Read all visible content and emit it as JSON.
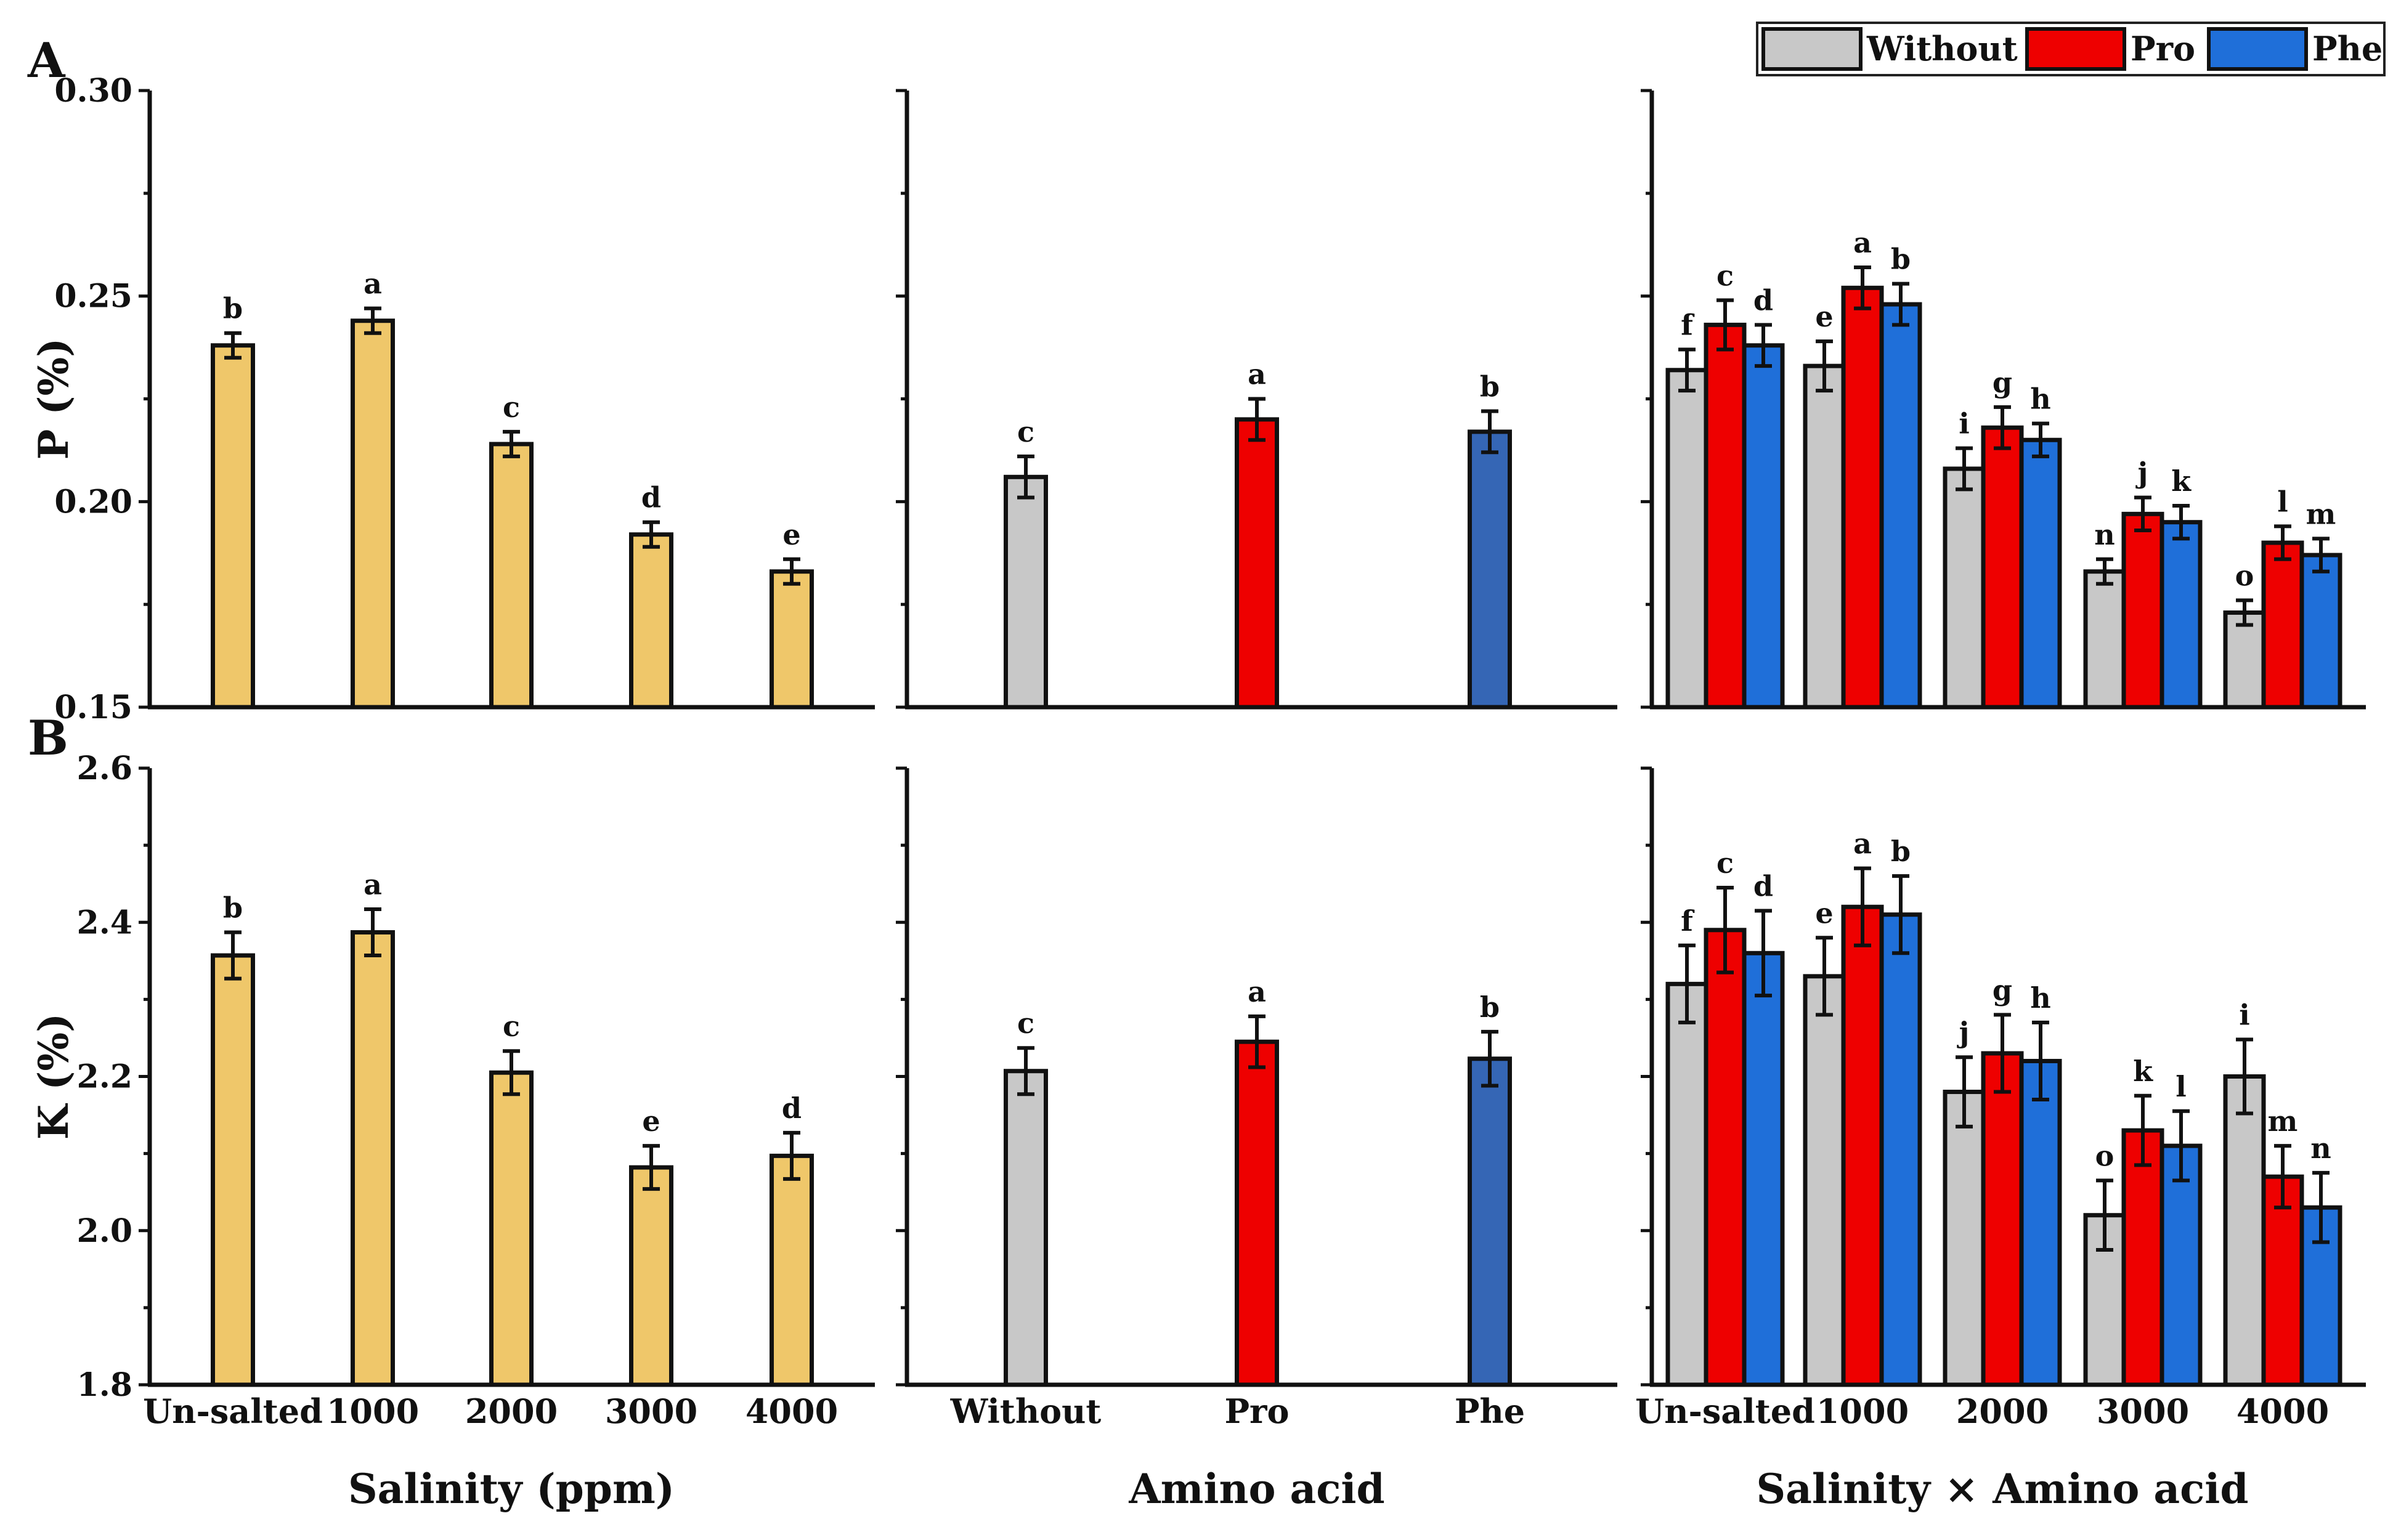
{
  "panel_letters": {
    "top": "A",
    "bottom": "B"
  },
  "legend": {
    "items": [
      {
        "label": "Without",
        "color": "#c8c8c8"
      },
      {
        "label": "Pro",
        "color": "#ee0000"
      },
      {
        "label": "Phe",
        "color": "#1f6fd9"
      }
    ]
  },
  "x_titles": [
    "Salinity (ppm)",
    "Amino acid",
    "Salinity × Amino acid"
  ],
  "colors": {
    "salinity": "#efc76a",
    "without": "#c8c8c8",
    "pro": "#ee0000",
    "phe": "#1f6fd9",
    "phe_main": "#3566b5"
  },
  "chart_data": [
    {
      "type": "bar",
      "id": "A1",
      "ylabel": "P (%)",
      "ylim": [
        0.15,
        0.3
      ],
      "yticks": [
        "0.15",
        "0.20",
        "0.25",
        "0.30"
      ],
      "categories": [
        "Un-salted",
        "1000",
        "2000",
        "3000",
        "4000"
      ],
      "series": [
        {
          "values": [
            0.238,
            0.244,
            0.214,
            0.192,
            0.183
          ],
          "errors": [
            0.003,
            0.003,
            0.003,
            0.003,
            0.003
          ],
          "letters": [
            "b",
            "a",
            "c",
            "d",
            "e"
          ]
        }
      ]
    },
    {
      "type": "bar",
      "id": "A2",
      "ylim": [
        0.15,
        0.3
      ],
      "categories": [
        "Without",
        "Pro",
        "Phe"
      ],
      "series": [
        {
          "values": [
            0.206,
            0.22,
            0.217
          ],
          "errors": [
            0.005,
            0.005,
            0.005
          ],
          "letters": [
            "c",
            "a",
            "b"
          ]
        }
      ]
    },
    {
      "type": "bar",
      "id": "A3",
      "ylim": [
        0.15,
        0.3
      ],
      "categories": [
        "Un-salted",
        "1000",
        "2000",
        "3000",
        "4000"
      ],
      "series": [
        {
          "name": "Without",
          "values": [
            0.232,
            0.233,
            0.208,
            0.183,
            0.173
          ],
          "errors": [
            0.005,
            0.006,
            0.005,
            0.003,
            0.003
          ],
          "letters": [
            "f",
            "e",
            "i",
            "n",
            "o"
          ]
        },
        {
          "name": "Pro",
          "values": [
            0.243,
            0.252,
            0.218,
            0.197,
            0.19
          ],
          "errors": [
            0.006,
            0.005,
            0.005,
            0.004,
            0.004
          ],
          "letters": [
            "c",
            "a",
            "g",
            "j",
            "l"
          ]
        },
        {
          "name": "Phe",
          "values": [
            0.238,
            0.248,
            0.215,
            0.195,
            0.187
          ],
          "errors": [
            0.005,
            0.005,
            0.004,
            0.004,
            0.004
          ],
          "letters": [
            "d",
            "b",
            "h",
            "k",
            "m"
          ]
        }
      ]
    },
    {
      "type": "bar",
      "id": "B1",
      "ylabel": "K (%)",
      "ylim": [
        1.8,
        2.6
      ],
      "yticks": [
        "1.8",
        "2.0",
        "2.2",
        "2.4",
        "2.6"
      ],
      "categories": [
        "Un-salted",
        "1000",
        "2000",
        "3000",
        "4000"
      ],
      "series": [
        {
          "values": [
            2.357,
            2.387,
            2.205,
            2.082,
            2.097
          ],
          "errors": [
            0.03,
            0.03,
            0.028,
            0.028,
            0.03
          ],
          "letters": [
            "b",
            "a",
            "c",
            "e",
            "d"
          ]
        }
      ]
    },
    {
      "type": "bar",
      "id": "B2",
      "ylim": [
        1.8,
        2.6
      ],
      "categories": [
        "Without",
        "Pro",
        "Phe"
      ],
      "series": [
        {
          "values": [
            2.207,
            2.245,
            2.223
          ],
          "errors": [
            0.03,
            0.033,
            0.035
          ],
          "letters": [
            "c",
            "a",
            "b"
          ]
        }
      ]
    },
    {
      "type": "bar",
      "id": "B3",
      "ylim": [
        1.8,
        2.6
      ],
      "categories": [
        "Un-salted",
        "1000",
        "2000",
        "3000",
        "4000"
      ],
      "series": [
        {
          "name": "Without",
          "values": [
            2.32,
            2.33,
            2.18,
            2.02,
            2.2
          ],
          "errors": [
            0.05,
            0.05,
            0.045,
            0.045,
            0.048
          ],
          "letters": [
            "f",
            "e",
            "j",
            "o",
            "i"
          ]
        },
        {
          "name": "Pro",
          "values": [
            2.39,
            2.42,
            2.23,
            2.13,
            2.07
          ],
          "errors": [
            0.055,
            0.05,
            0.05,
            0.045,
            0.04
          ],
          "letters": [
            "c",
            "a",
            "g",
            "k",
            "m"
          ]
        },
        {
          "name": "Phe",
          "values": [
            2.36,
            2.41,
            2.22,
            2.11,
            2.03
          ],
          "errors": [
            0.055,
            0.05,
            0.05,
            0.045,
            0.045
          ],
          "letters": [
            "d",
            "b",
            "h",
            "l",
            "n"
          ]
        }
      ]
    }
  ]
}
